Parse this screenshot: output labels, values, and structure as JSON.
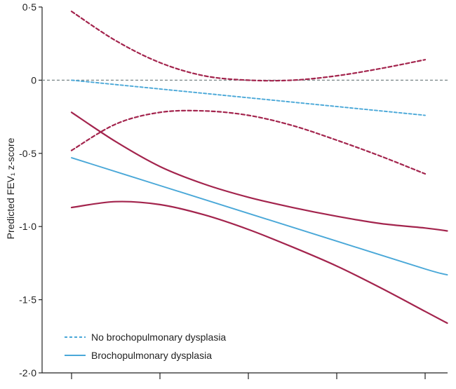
{
  "chart_data": {
    "type": "line",
    "title": "",
    "xlabel": "",
    "ylabel": "Predicted FEV₁ z-score",
    "ylim": [
      -2.0,
      0.5
    ],
    "xlim": [
      0,
      5
    ],
    "y_ticks": [
      0.5,
      0,
      -0.5,
      -1.0,
      -1.5,
      -2.0
    ],
    "y_tick_labels": [
      "0·5",
      "0",
      "-0·5",
      "-1·0",
      "-1·5",
      "-2·0"
    ],
    "x_ticks": [
      0,
      1,
      2,
      3,
      4
    ],
    "x_tick_labels": [
      "",
      "",
      "",
      "",
      ""
    ],
    "reference_line": {
      "y": 0,
      "style": "dashed",
      "color": "#7f8c8d"
    },
    "legend": {
      "placement": "bottom-left",
      "entries": [
        {
          "label": "No brochopulmonary dysplasia",
          "style": "dashed",
          "color": "#4aa8d8"
        },
        {
          "label": "Brochopulmonary dysplasia",
          "style": "solid",
          "color": "#4aa8d8"
        }
      ]
    },
    "series": [
      {
        "group": "No brochopulmonary dysplasia",
        "role": "estimate",
        "style": "dashed",
        "color": "#4aa8d8",
        "x": [
          0,
          1,
          2,
          3,
          4
        ],
        "y": [
          0.0,
          -0.06,
          -0.12,
          -0.18,
          -0.24
        ]
      },
      {
        "group": "No brochopulmonary dysplasia",
        "role": "upper-ci",
        "style": "dashed",
        "color": "#a3244d",
        "x": [
          0,
          0.5,
          1,
          1.5,
          2,
          2.5,
          3,
          3.5,
          4
        ],
        "y": [
          0.47,
          0.27,
          0.12,
          0.03,
          0.0,
          0.0,
          0.03,
          0.08,
          0.14
        ]
      },
      {
        "group": "No brochopulmonary dysplasia",
        "role": "lower-ci",
        "style": "dashed",
        "color": "#a3244d",
        "x": [
          0,
          0.5,
          1,
          1.5,
          2,
          2.5,
          3,
          3.5,
          4
        ],
        "y": [
          -0.48,
          -0.3,
          -0.22,
          -0.21,
          -0.24,
          -0.31,
          -0.41,
          -0.52,
          -0.64
        ]
      },
      {
        "group": "Brochopulmonary dysplasia",
        "role": "estimate",
        "style": "solid",
        "color": "#4aa8d8",
        "x": [
          0,
          1,
          2,
          3,
          4,
          4.25
        ],
        "y": [
          -0.53,
          -0.72,
          -0.91,
          -1.1,
          -1.29,
          -1.33
        ]
      },
      {
        "group": "Brochopulmonary dysplasia",
        "role": "upper-ci",
        "style": "solid",
        "color": "#a3244d",
        "x": [
          0,
          0.5,
          1,
          1.5,
          2,
          2.5,
          3,
          3.5,
          4,
          4.25
        ],
        "y": [
          -0.22,
          -0.42,
          -0.59,
          -0.71,
          -0.8,
          -0.87,
          -0.93,
          -0.98,
          -1.01,
          -1.03
        ]
      },
      {
        "group": "Brochopulmonary dysplasia",
        "role": "lower-ci",
        "style": "solid",
        "color": "#a3244d",
        "x": [
          0,
          0.5,
          1,
          1.5,
          2,
          2.5,
          3,
          3.5,
          4,
          4.25
        ],
        "y": [
          -0.87,
          -0.83,
          -0.85,
          -0.92,
          -1.02,
          -1.14,
          -1.27,
          -1.42,
          -1.58,
          -1.66
        ]
      }
    ]
  }
}
